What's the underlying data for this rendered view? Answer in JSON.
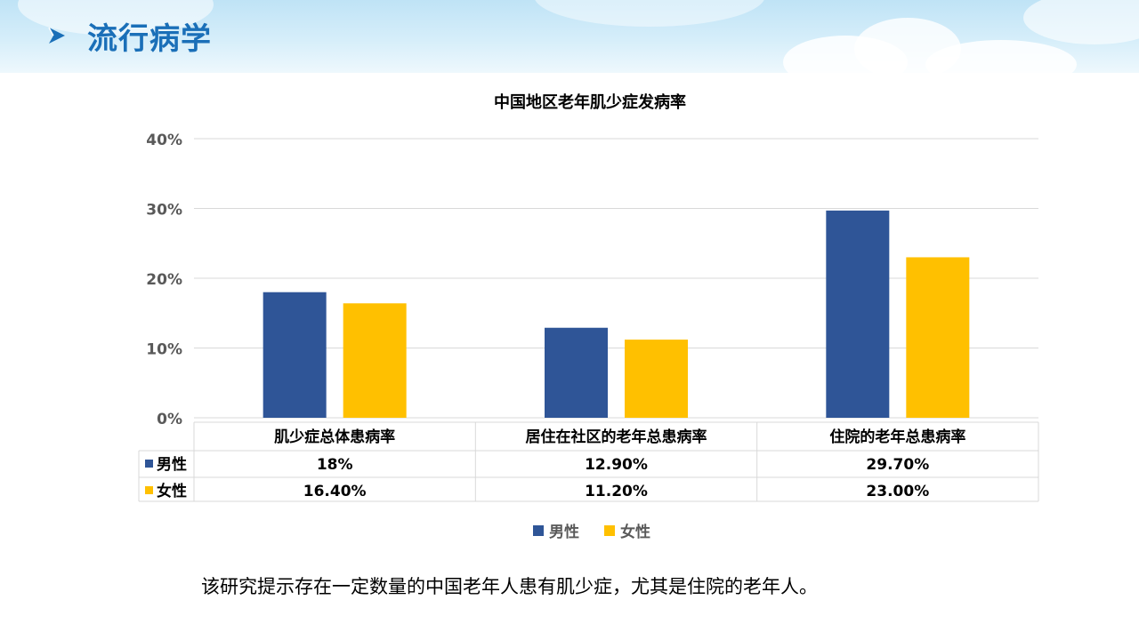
{
  "header": {
    "title": "流行病学",
    "icon": "arrow-right-icon"
  },
  "chart_data": {
    "type": "bar",
    "title": "中国地区老年肌少症发病率",
    "categories": [
      "肌少症总体患病率",
      "居住在社区的老年总患病率",
      "住院的老年总患病率"
    ],
    "series": [
      {
        "name": "男性",
        "values": [
          18,
          12.9,
          29.7
        ],
        "labels": [
          "18%",
          "12.90%",
          "29.70%"
        ],
        "color": "#2f5597"
      },
      {
        "name": "女性",
        "values": [
          16.4,
          11.2,
          23.0
        ],
        "labels": [
          "16.40%",
          "11.20%",
          "23.00%"
        ],
        "color": "#ffc000"
      }
    ],
    "yticks": [
      "0%",
      "10%",
      "20%",
      "30%",
      "40%"
    ],
    "ylim": [
      0,
      40
    ],
    "grid": true,
    "legend": "bottom",
    "data_table": true
  },
  "caption": "该研究提示存在一定数量的中国老年人患有肌少症，尤其是住院的老年人。"
}
